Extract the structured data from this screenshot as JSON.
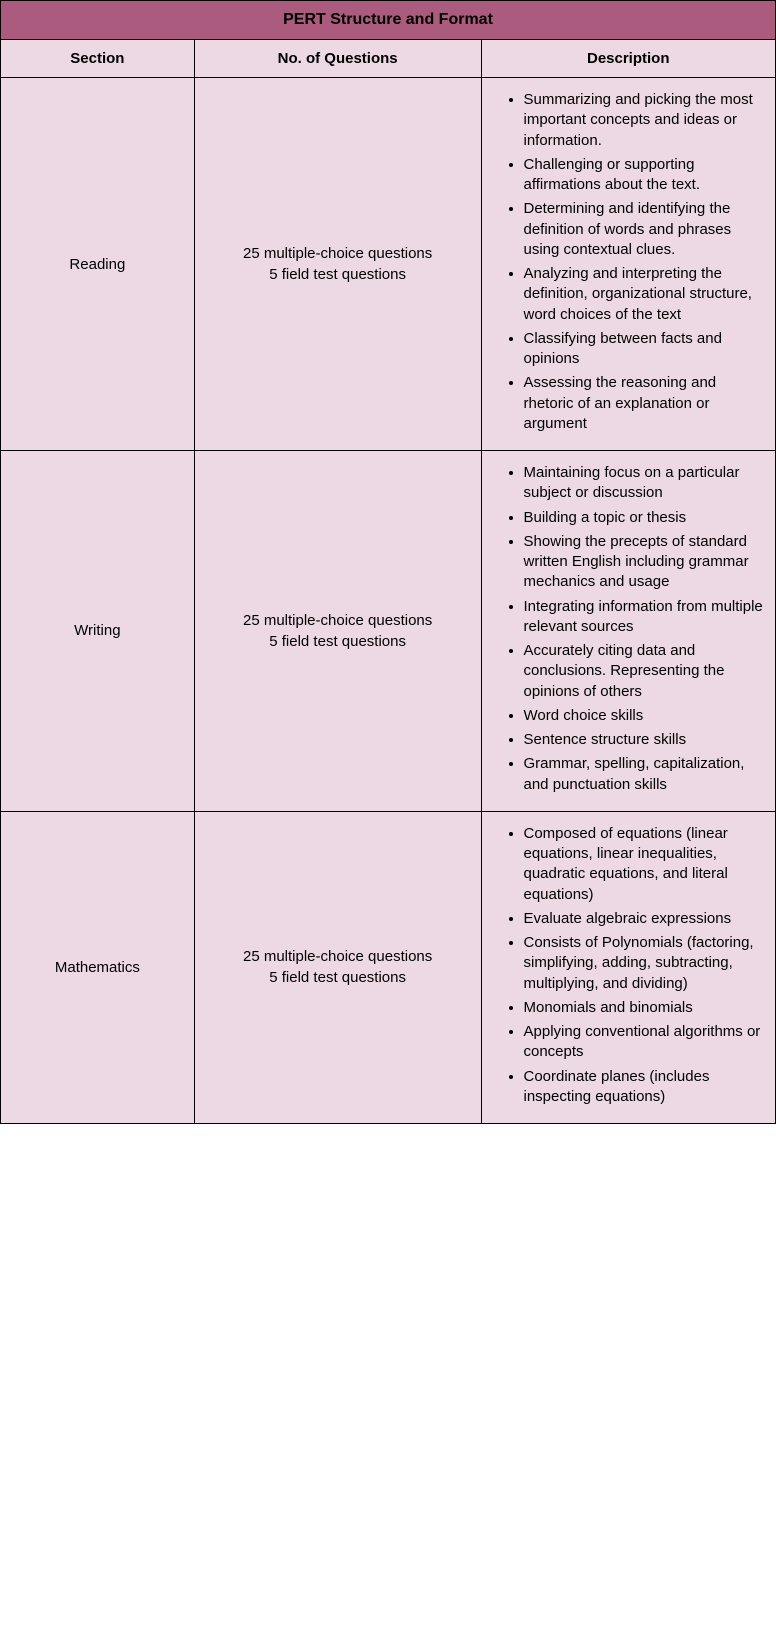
{
  "table": {
    "title": "PERT Structure and Format",
    "columns": [
      "Section",
      "No. of Questions",
      "Description"
    ],
    "rows": [
      {
        "section": "Reading",
        "questions_line1": "25 multiple-choice questions",
        "questions_line2": "5 field test questions",
        "description": [
          "Summarizing and picking the most important concepts and ideas or information.",
          "Challenging or supporting affirmations about the text.",
          "Determining and identifying the definition of words and phrases using contextual clues.",
          "Analyzing and interpreting the definition, organizational structure, word choices of the text",
          "Classifying between facts and opinions",
          "Assessing the reasoning and rhetoric of an explanation or argument"
        ]
      },
      {
        "section": "Writing",
        "questions_line1": "25 multiple-choice questions",
        "questions_line2": "5 field test questions",
        "description": [
          "Maintaining focus on a particular subject or discussion",
          "Building a topic or thesis",
          "Showing the precepts of standard written English including grammar mechanics and usage",
          "Integrating information from multiple relevant sources",
          "Accurately citing data and conclusions. Representing the opinions of others",
          "Word choice skills",
          "Sentence structure skills",
          "Grammar, spelling, capitalization, and punctuation skills"
        ]
      },
      {
        "section": "Mathematics",
        "questions_line1": "25 multiple-choice questions",
        "questions_line2": "5 field test questions",
        "description": [
          "Composed of equations (linear equations, linear inequalities, quadratic equations, and literal equations)",
          "Evaluate algebraic expressions",
          "Consists of Polynomials (factoring, simplifying, adding, subtracting, multiplying, and dividing)",
          "Monomials and binomials",
          "Applying conventional algorithms or concepts",
          "Coordinate planes (includes inspecting equations)"
        ]
      }
    ],
    "colors": {
      "title_bg": "#aa5b7e",
      "header_bg": "#ecd9e3",
      "cell_bg": "#ecd9e3",
      "border": "#000000",
      "text": "#000000"
    },
    "font_sizes": {
      "title": 16,
      "header": 15,
      "body": 15
    }
  }
}
